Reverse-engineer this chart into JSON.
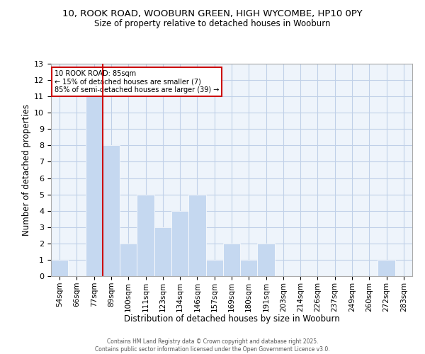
{
  "title_line1": "10, ROOK ROAD, WOOBURN GREEN, HIGH WYCOMBE, HP10 0PY",
  "title_line2": "Size of property relative to detached houses in Wooburn",
  "xlabel": "Distribution of detached houses by size in Wooburn",
  "ylabel": "Number of detached properties",
  "categories": [
    "54sqm",
    "66sqm",
    "77sqm",
    "89sqm",
    "100sqm",
    "111sqm",
    "123sqm",
    "134sqm",
    "146sqm",
    "157sqm",
    "169sqm",
    "180sqm",
    "191sqm",
    "203sqm",
    "214sqm",
    "226sqm",
    "237sqm",
    "249sqm",
    "260sqm",
    "272sqm",
    "283sqm"
  ],
  "values": [
    1,
    0,
    11,
    8,
    2,
    5,
    3,
    4,
    5,
    1,
    2,
    1,
    2,
    0,
    0,
    0,
    0,
    0,
    0,
    1,
    0
  ],
  "bar_color": "#c5d8f0",
  "bar_edge_color": "#ffffff",
  "grid_color": "#c0d0e8",
  "background_color": "#eef4fb",
  "annotation_box_title": "10 ROOK ROAD: 85sqm",
  "annotation_line1": "← 15% of detached houses are smaller (7)",
  "annotation_line2": "85% of semi-detached houses are larger (39) →",
  "subject_line_color": "#cc0000",
  "ylim": [
    0,
    13
  ],
  "yticks": [
    0,
    1,
    2,
    3,
    4,
    5,
    6,
    7,
    8,
    9,
    10,
    11,
    12,
    13
  ],
  "footer_line1": "Contains HM Land Registry data © Crown copyright and database right 2025.",
  "footer_line2": "Contains public sector information licensed under the Open Government Licence v3.0."
}
